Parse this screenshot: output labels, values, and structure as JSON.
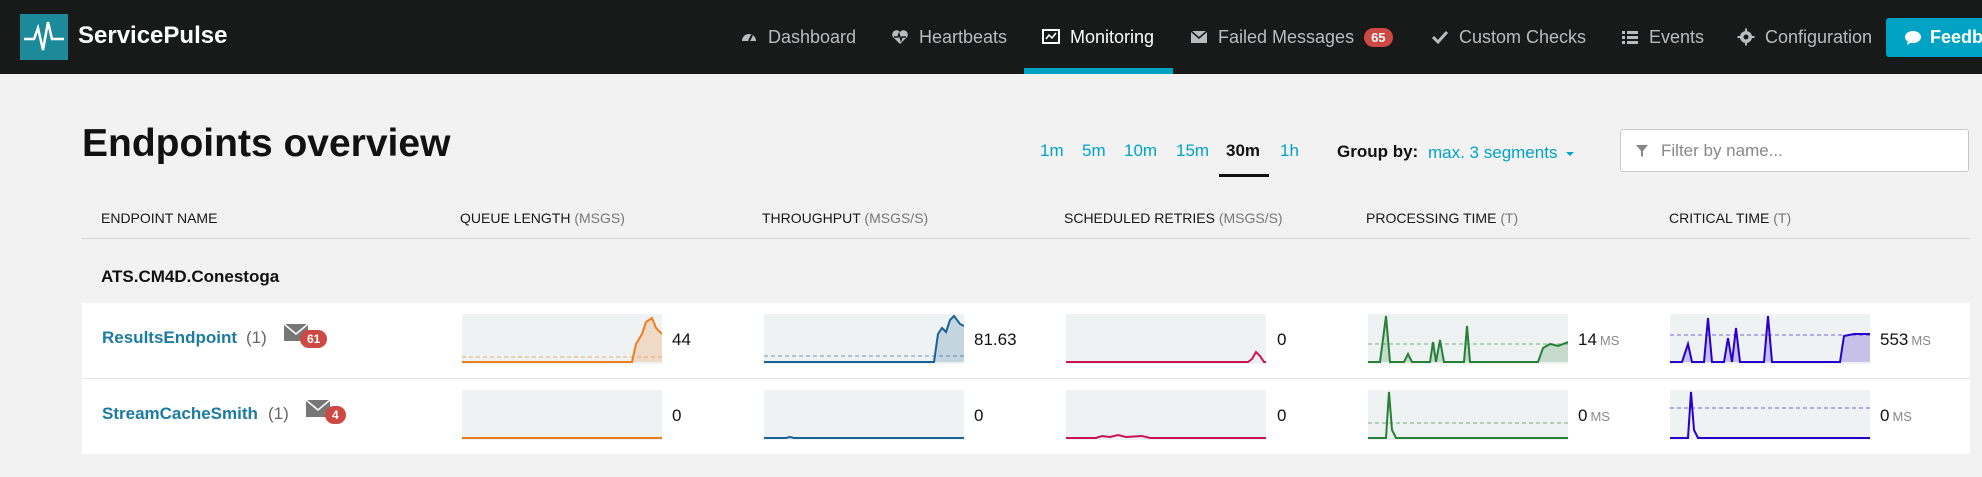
{
  "app": {
    "brand": "ServicePulse"
  },
  "nav": {
    "dashboard": "Dashboard",
    "heartbeats": "Heartbeats",
    "monitoring": "Monitoring",
    "failed_messages": "Failed Messages",
    "failed_count": "65",
    "custom_checks": "Custom Checks",
    "events": "Events",
    "configuration": "Configuration",
    "feedback": "Feedb",
    "active": "Monitoring"
  },
  "page": {
    "title": "Endpoints overview",
    "periods": [
      "1m",
      "5m",
      "10m",
      "15m",
      "30m",
      "1h"
    ],
    "selected_period": "30m",
    "group_by_label": "Group by:",
    "group_by_value": "max. 3 segments",
    "filter_placeholder": "Filter by name..."
  },
  "columns": {
    "endpoint": "ENDPOINT NAME",
    "queue": "QUEUE LENGTH",
    "queue_unit": "(MSGS)",
    "throughput": "THROUGHPUT",
    "throughput_unit": "(MSGS/S)",
    "retries": "SCHEDULED RETRIES",
    "retries_unit": "(MSGS/S)",
    "processing": "PROCESSING TIME",
    "processing_unit": "(T)",
    "critical": "CRITICAL TIME",
    "critical_unit": "(T)"
  },
  "group": {
    "name": "ATS.CM4D.Conestoga"
  },
  "endpoints": [
    {
      "name": "ResultsEndpoint",
      "instances": "(1)",
      "failed": "61",
      "queue": "44",
      "throughput": "81.63",
      "retries": "0",
      "processing": "14",
      "processing_unit": "MS",
      "critical": "553",
      "critical_unit": "MS"
    },
    {
      "name": "StreamCacheSmith",
      "instances": "(1)",
      "failed": "4",
      "queue": "0",
      "throughput": "0",
      "retries": "0",
      "processing": "0",
      "processing_unit": "MS",
      "critical": "0",
      "critical_unit": "MS"
    }
  ],
  "colors": {
    "queue": "#ea7e1e",
    "throughput": "#176397",
    "retries": "#cc1252",
    "processing": "#258135",
    "critical": "#2700cb",
    "accent": "#00a3c4",
    "badge": "#ce4844"
  }
}
